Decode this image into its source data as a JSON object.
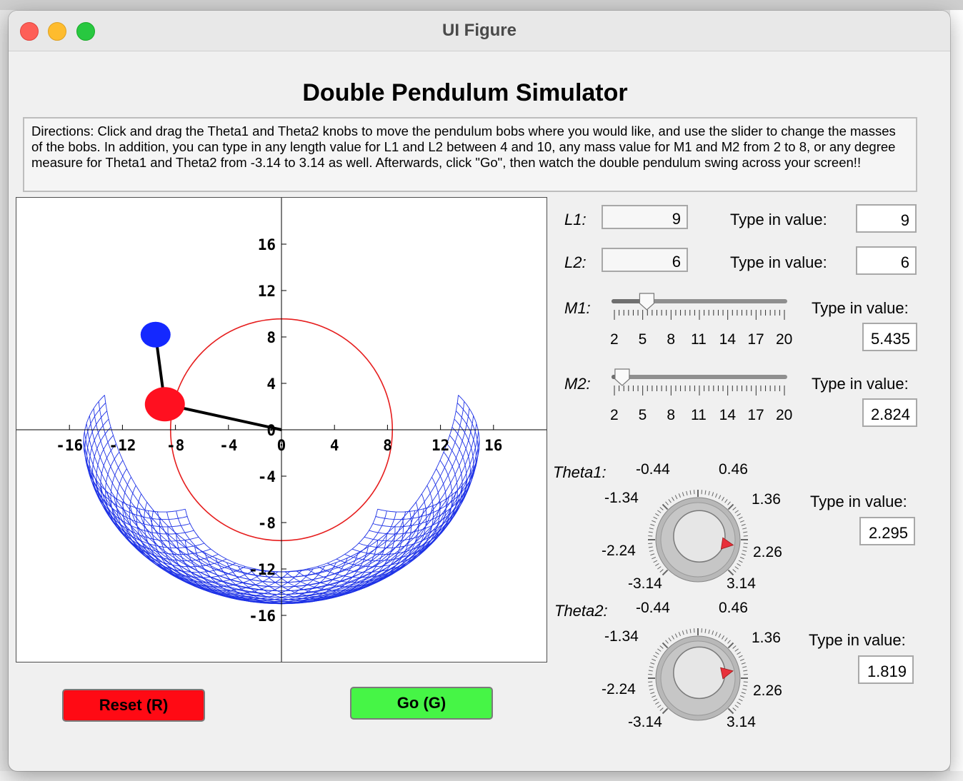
{
  "window": {
    "title": "UI Figure"
  },
  "app": {
    "title": "Double Pendulum Simulator",
    "directions": "Directions: Click and drag the Theta1 and Theta2 knobs to move the pendulum bobs where you would like, and use the slider to change the masses of the bobs. In addition, you can type in any length value for L1 and L2 between 4 and 10, any mass value for M1 and M2 from 2 to 8, or any degree measure for Theta1 and Theta2 from -3.14 to 3.14 as well. Afterwards, click \"Go\", then watch the double pendulum swing across your screen!!"
  },
  "plot": {
    "xticks": [
      "-16",
      "-12",
      "-8",
      "-4",
      "0",
      "4",
      "8",
      "12",
      "16"
    ],
    "yticks": [
      "16",
      "12",
      "8",
      "4",
      "0",
      "-4",
      "-8",
      "-12",
      "-16"
    ],
    "xlim": [
      -20,
      20
    ],
    "ylim": [
      -20,
      20
    ],
    "bob1": {
      "x": -8.8,
      "y": 2.2,
      "color": "#ff1020"
    },
    "bob2": {
      "x": -9.5,
      "y": 8.2,
      "color": "#1428ff"
    },
    "trace_color": "#1e32e6",
    "circle_color": "#e61e1e",
    "rod_color": "#000000"
  },
  "controls": {
    "l1": {
      "label": "L1:",
      "value": "9",
      "type_label": "Type in value:",
      "input": "9"
    },
    "l2": {
      "label": "L2:",
      "value": "6",
      "type_label": "Type in value:",
      "input": "6"
    },
    "m1": {
      "label": "M1:",
      "value": 5.435,
      "type_label": "Type in value:",
      "input": "5.435"
    },
    "m2": {
      "label": "M2:",
      "value": 2.824,
      "type_label": "Type in value:",
      "input": "2.824"
    },
    "slider_ticks": [
      "2",
      "5",
      "8",
      "11",
      "14",
      "17",
      "20"
    ],
    "slider_range": [
      2,
      20
    ],
    "theta1": {
      "label": "Theta1:",
      "value": 2.295,
      "type_label": "Type in value:",
      "input": "2.295"
    },
    "theta2": {
      "label": "Theta2:",
      "value": 1.819,
      "type_label": "Type in value:",
      "input": "1.819"
    },
    "knob_ticks": {
      "a": "-0.44",
      "b": "0.46",
      "c": "-1.34",
      "d": "1.36",
      "e": "-2.24",
      "f": "2.26",
      "g": "-3.14",
      "h": "3.14"
    },
    "knob_range": [
      -3.14,
      3.14
    ]
  },
  "buttons": {
    "reset": "Reset (R)",
    "go": "Go (G)"
  }
}
